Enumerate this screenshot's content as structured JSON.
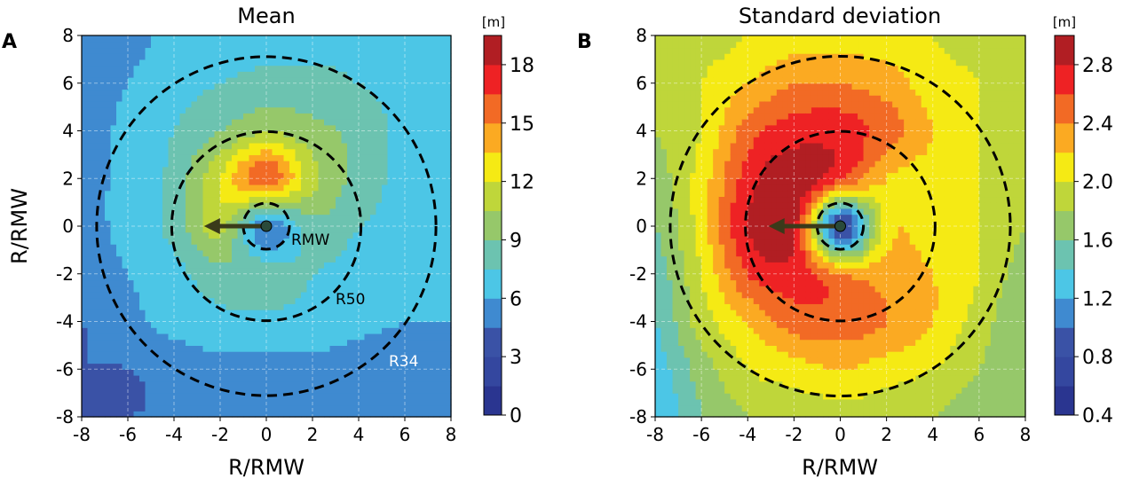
{
  "chart_data": [
    {
      "type": "heatmap",
      "panel_label": "A",
      "title": "Mean",
      "xlabel": "R/RMW",
      "ylabel": "R/RMW",
      "xlim": [
        -8,
        8
      ],
      "ylim": [
        -8,
        8
      ],
      "xticks": [
        "-8",
        "-6",
        "-4",
        "-2",
        "0",
        "2",
        "4",
        "6",
        "8"
      ],
      "yticks": [
        "8",
        "6",
        "4",
        "2",
        "0",
        "-2",
        "-4",
        "-6",
        "-8"
      ],
      "grid": true,
      "colorbar": {
        "unit": "[m]",
        "min": 0,
        "max": 19.5,
        "step": 1.5,
        "ticks": [
          "0",
          "3",
          "6",
          "9",
          "12",
          "15",
          "18"
        ],
        "tick_values": [
          0,
          3,
          6,
          9,
          12,
          15,
          18
        ]
      },
      "grid_x": [
        -8,
        -6,
        -4,
        -2,
        0,
        2,
        4,
        6,
        8
      ],
      "grid_y": [
        8,
        6,
        4,
        2,
        0,
        -2,
        -4,
        -6,
        -8
      ],
      "values": [
        [
          5,
          5.5,
          6.5,
          7,
          7,
          7,
          7,
          6.5,
          6
        ],
        [
          5,
          6,
          7,
          7.5,
          8,
          8,
          7.5,
          7,
          6.5
        ],
        [
          5,
          6.5,
          7.5,
          9,
          10.5,
          9.5,
          8.5,
          7,
          6.5
        ],
        [
          5.5,
          6.5,
          8,
          12,
          16,
          11,
          8.5,
          7,
          6.5
        ],
        [
          5.5,
          6.5,
          8,
          11,
          5,
          8.5,
          7.5,
          7,
          6.5
        ],
        [
          5,
          6,
          7,
          8.5,
          8.5,
          7.5,
          7,
          6.5,
          6.5
        ],
        [
          4.5,
          5.5,
          6.5,
          7,
          7,
          7,
          6.5,
          6,
          6
        ],
        [
          4.5,
          4.5,
          5,
          5.5,
          5.5,
          5.5,
          5,
          5,
          5
        ],
        [
          4.5,
          4.5,
          4.5,
          4.5,
          4.5,
          4.5,
          4.5,
          4.5,
          4.5
        ]
      ],
      "circles": [
        {
          "label": "RMW",
          "radius": 1
        },
        {
          "label": "R50",
          "radius": 4.1
        },
        {
          "label": "R34",
          "radius": 7.35
        }
      ],
      "arrow": {
        "from": [
          0,
          0
        ],
        "to": [
          -2.7,
          0
        ]
      }
    },
    {
      "type": "heatmap",
      "panel_label": "B",
      "title": "Standard deviation",
      "xlabel": "R/RMW",
      "ylabel": "",
      "xlim": [
        -8,
        8
      ],
      "ylim": [
        -8,
        8
      ],
      "xticks": [
        "-8",
        "-6",
        "-4",
        "-2",
        "0",
        "2",
        "4",
        "6",
        "8"
      ],
      "yticks": [
        "8",
        "6",
        "4",
        "2",
        "0",
        "-2",
        "-4",
        "-6",
        "-8"
      ],
      "grid": true,
      "colorbar": {
        "unit": "[m]",
        "min": 0.4,
        "max": 3.0,
        "step": 0.2,
        "ticks": [
          "0.4",
          "0.8",
          "1.2",
          "1.6",
          "2.0",
          "2.4",
          "2.8"
        ],
        "tick_values": [
          0.4,
          0.8,
          1.2,
          1.6,
          2.0,
          2.4,
          2.8
        ]
      },
      "grid_x": [
        -8,
        -6,
        -4,
        -2,
        0,
        2,
        4,
        6,
        8
      ],
      "grid_y": [
        8,
        6,
        4,
        2,
        0,
        -2,
        -4,
        -6,
        -8
      ],
      "values": [
        [
          1.8,
          1.9,
          2.0,
          2.1,
          2.1,
          2.1,
          2.0,
          1.9,
          1.9
        ],
        [
          1.8,
          2.0,
          2.2,
          2.4,
          2.4,
          2.3,
          2.1,
          2.0,
          1.8
        ],
        [
          1.8,
          2.0,
          2.5,
          2.7,
          2.7,
          2.5,
          2.2,
          2.0,
          1.8
        ],
        [
          1.7,
          2.1,
          2.7,
          2.95,
          2.6,
          2.2,
          2.1,
          2.0,
          1.8
        ],
        [
          1.6,
          2.1,
          2.8,
          2.85,
          0.8,
          2.1,
          2.1,
          2.0,
          1.8
        ],
        [
          1.5,
          2.0,
          2.6,
          2.7,
          2.4,
          2.3,
          2.2,
          2.0,
          1.7
        ],
        [
          1.4,
          1.9,
          2.2,
          2.5,
          2.5,
          2.4,
          2.2,
          1.9,
          1.6
        ],
        [
          1.3,
          1.7,
          2.0,
          2.1,
          2.2,
          2.1,
          2.0,
          1.8,
          1.6
        ],
        [
          1.2,
          1.6,
          1.8,
          1.9,
          1.9,
          1.9,
          1.8,
          1.7,
          1.6
        ]
      ],
      "circles": [
        {
          "label": "",
          "radius": 1
        },
        {
          "label": "",
          "radius": 4.1
        },
        {
          "label": "",
          "radius": 7.35
        }
      ],
      "arrow": {
        "from": [
          0,
          0
        ],
        "to": [
          -3.1,
          0
        ]
      }
    }
  ],
  "palette": [
    "#2a3590",
    "#34479f",
    "#3a52a6",
    "#3f8ad0",
    "#4cc6e6",
    "#6cc3b0",
    "#96c86a",
    "#bfd63a",
    "#f5ea14",
    "#fbaa22",
    "#f26a25",
    "#ee2224",
    "#b11e23"
  ]
}
